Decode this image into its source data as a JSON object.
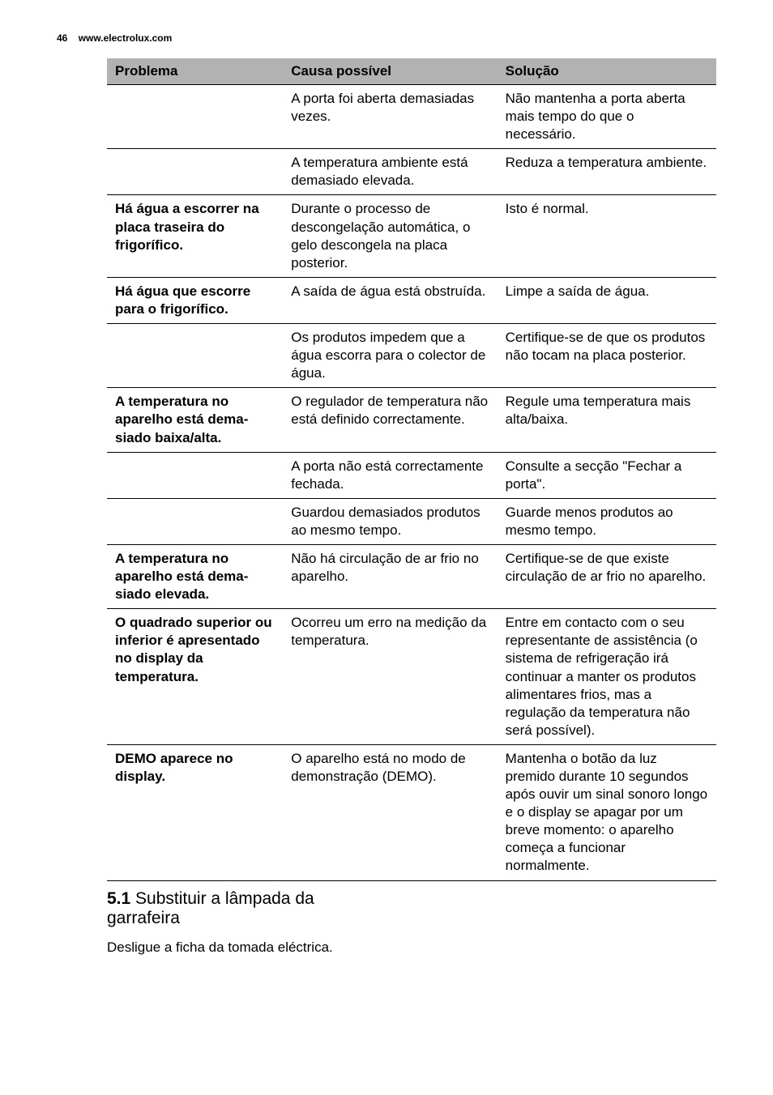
{
  "header": {
    "page_number": "46",
    "url": "www.electrolux.com"
  },
  "table": {
    "headers": {
      "col1": "Problema",
      "col2": "Causa possível",
      "col3": "Solução"
    },
    "rows": [
      {
        "c1": "",
        "c2": "A porta foi aberta dema­siadas vezes.",
        "c3": "Não mantenha a porta aberta mais tempo do que o necessário."
      },
      {
        "c1": "",
        "c2": "A temperatura ambiente está demasiado elevada.",
        "c3": "Reduza a temperatura am­biente."
      },
      {
        "c1": "Há água a escorrer na placa traseira do frigorífico.",
        "c2": "Durante o processo de descongelação automáti­ca, o gelo descongela na placa posterior.",
        "c3": "Isto é normal."
      },
      {
        "c1": "Há água que escor­re para o frigorífico.",
        "c2": "A saída de água está ob­struída.",
        "c3": "Limpe a saída de água."
      },
      {
        "c1": "",
        "c2": "Os produtos impedem que a água escorra para o colector de água.",
        "c3": "Certifique-se de que os produtos não tocam na pla­ca posterior."
      },
      {
        "c1": "A temperatura no aparelho está dema­siado baixa/alta.",
        "c2": "O regulador de temperatu­ra não está definido cor­rectamente.",
        "c3": "Regule uma temperatura mais alta/baixa."
      },
      {
        "c1": "",
        "c2": "A porta não está correcta­mente fechada.",
        "c3": "Consulte a secção \"Fechar a porta\"."
      },
      {
        "c1": "",
        "c2": "Guardou demasiados pro­dutos ao mesmo tempo.",
        "c3": "Guarde menos produtos ao mesmo tempo."
      },
      {
        "c1": "A temperatura no aparelho está dema­siado elevada.",
        "c2": "Não há circulação de ar frio no aparelho.",
        "c3": "Certifique-se de que existe circulação de ar frio no aparelho."
      },
      {
        "c1": "O quadrado superior ou inferior é apre­sentado no display da temperatura.",
        "c2": "Ocorreu um erro na medi­ção da temperatura.",
        "c3": "Entre em contacto com o seu representante de assis­tência (o sistema de refrige­ração irá continuar a man­ter os produtos alimentares frios, mas a regulação da temperatura não será pos­sível)."
      },
      {
        "c1": "DEMO aparece no display.",
        "c2": "O aparelho está no modo de demonstração (DEMO).",
        "c3": "Mantenha o botão da luz premido durante 10 segun­dos após ouvir um sinal so­noro longo e o display se apagar por um breve mo­mento: o aparelho começa a funcionar normalmente."
      }
    ]
  },
  "section": {
    "number": "5.1",
    "title_line1": "Substituir a lâmpada da",
    "title_line2": "garrafeira",
    "body": "Desligue a ficha da tomada eléctrica."
  }
}
